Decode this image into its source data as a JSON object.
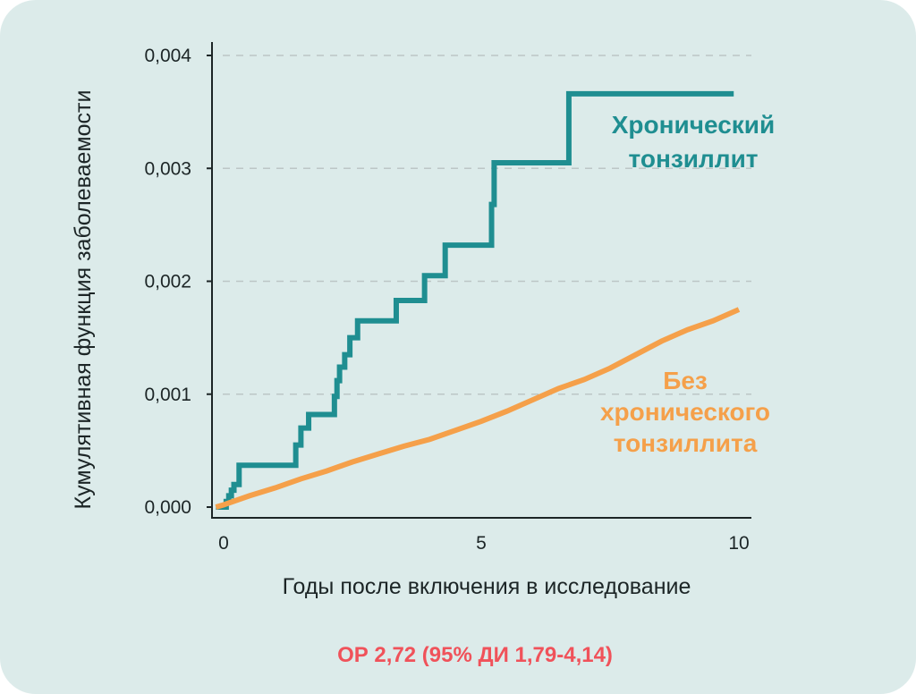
{
  "chart_data": {
    "type": "line",
    "title": "",
    "xlabel": "Годы после включения в исследование",
    "ylabel": "Кумулятивная функция заболеваемости",
    "xlim": [
      0,
      10
    ],
    "ylim": [
      0,
      0.004
    ],
    "x_ticks": [
      0,
      5,
      10
    ],
    "x_tick_labels": [
      "0",
      "5",
      "10"
    ],
    "y_ticks": [
      0,
      0.001,
      0.002,
      0.003,
      0.004
    ],
    "y_tick_labels": [
      "0,000",
      "0,001",
      "0,002",
      "0,003",
      "0,004"
    ],
    "grid": "horizontal dashed",
    "series": [
      {
        "name": "Хронический тонзиллит",
        "color": "#1f8e91",
        "style": "step",
        "x": [
          -0.15,
          0.05,
          0.1,
          0.15,
          0.2,
          0.3,
          1.35,
          1.4,
          1.5,
          1.65,
          2.1,
          2.15,
          2.2,
          2.25,
          2.35,
          2.45,
          2.6,
          2.7,
          3.35,
          3.9,
          4.3,
          4.9,
          5.2,
          5.25,
          6.7,
          9.9
        ],
        "y": [
          0,
          5e-05,
          0.0001,
          0.00015,
          0.0002,
          0.00037,
          0.00037,
          0.00055,
          0.0007,
          0.00082,
          0.00082,
          0.00098,
          0.00112,
          0.00124,
          0.00135,
          0.0015,
          0.00165,
          0.00165,
          0.00183,
          0.00205,
          0.00232,
          0.00232,
          0.00268,
          0.00305,
          0.00366,
          0.00366
        ]
      },
      {
        "name": "Без хронического тонзиллита",
        "color": "#f5a04a",
        "style": "line",
        "x": [
          -0.15,
          0,
          0.5,
          1.0,
          1.5,
          2.0,
          2.5,
          3.0,
          3.5,
          4.0,
          4.5,
          5.0,
          5.5,
          6.0,
          6.5,
          7.0,
          7.5,
          8.0,
          8.5,
          9.0,
          9.5,
          10.0
        ],
        "y": [
          0,
          2e-05,
          0.0001,
          0.00017,
          0.00025,
          0.00032,
          0.0004,
          0.00047,
          0.00054,
          0.0006,
          0.00068,
          0.00076,
          0.00085,
          0.00095,
          0.00105,
          0.00113,
          0.00123,
          0.00135,
          0.00147,
          0.00157,
          0.00165,
          0.00175
        ]
      }
    ],
    "annotations": [
      {
        "lines": [
          "Хронический",
          "тонзиллит"
        ],
        "color": "#1f8e91"
      },
      {
        "lines": [
          "Без",
          "хронического",
          "тонзиллита"
        ],
        "color": "#f5a04a"
      }
    ]
  },
  "footer": {
    "text": "ОР 2,72 (95% ДИ 1,79-4,14)",
    "color": "#f0525a"
  },
  "colors": {
    "background": "#dcebea",
    "axis": "#1c2526",
    "grid": "#bcc6c6"
  }
}
